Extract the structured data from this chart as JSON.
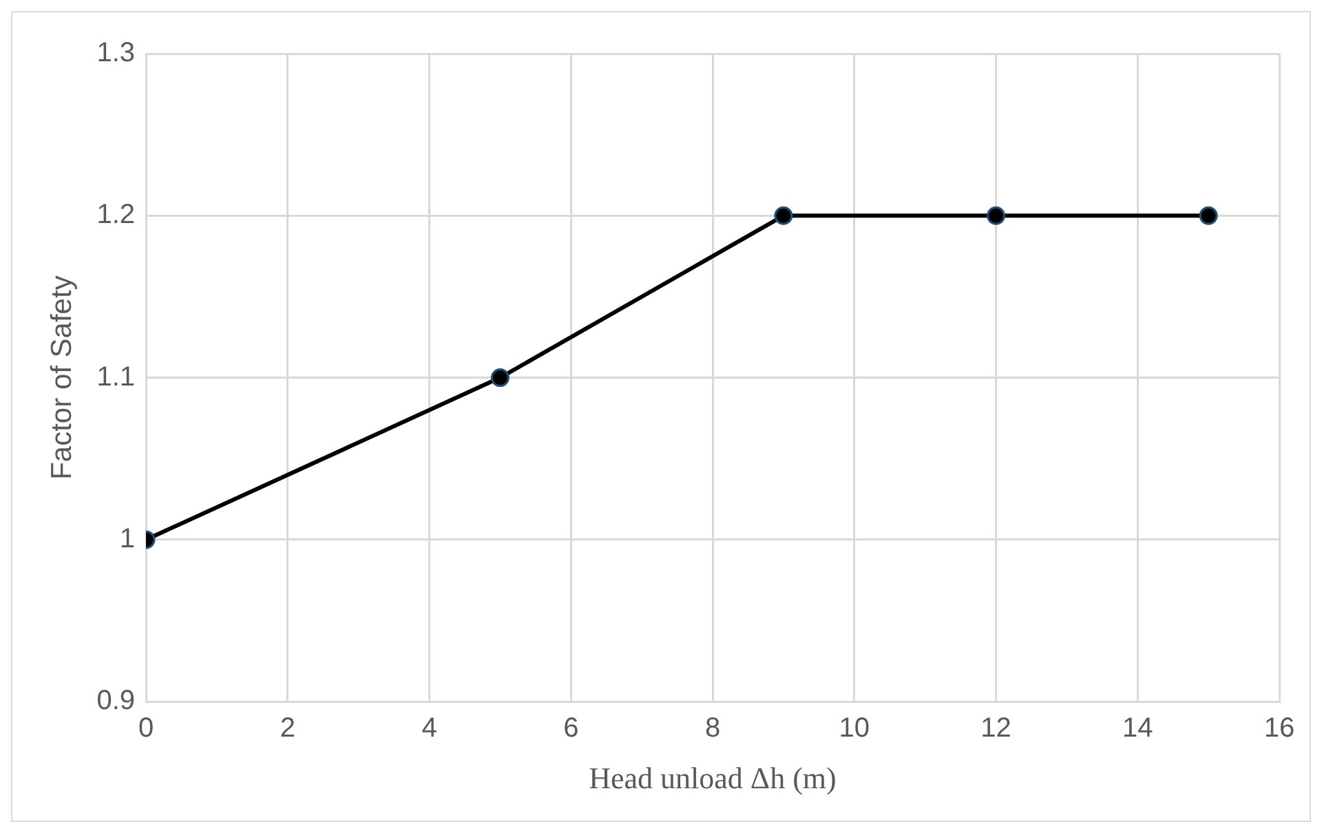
{
  "chart_data": {
    "type": "line",
    "xlabel": "Head unload Δh (m)",
    "ylabel": "Factor of Safety",
    "x": [
      0,
      5,
      9,
      12,
      15
    ],
    "series": [
      {
        "color": "#000000",
        "values": [
          1,
          1.1,
          1.2,
          1.2,
          1.2
        ]
      }
    ],
    "xlim": [
      0,
      16
    ],
    "xticks": [
      0,
      2,
      4,
      6,
      8,
      10,
      12,
      14,
      16
    ],
    "ylim": [
      0.9,
      1.3
    ],
    "yticks": [
      0.9,
      1,
      1.1,
      1.2,
      1.3
    ],
    "grid": true,
    "legend": false,
    "marker": "circle",
    "line_style": "solid"
  }
}
